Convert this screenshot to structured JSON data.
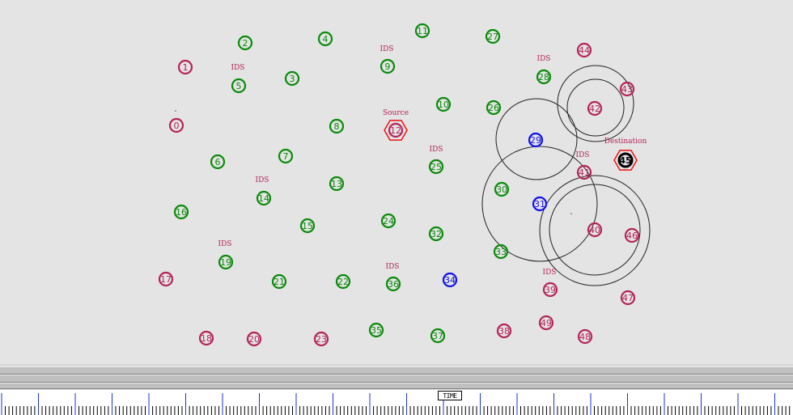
{
  "colors": {
    "green": "#0a8a0a",
    "magenta": "#b4245a",
    "blue": "#1010ee",
    "red": "#ee1111",
    "black": "#000000",
    "label": "#b4245a"
  },
  "nodes": [
    {
      "id": "0",
      "type": "magenta"
    },
    {
      "id": "1",
      "type": "magenta"
    },
    {
      "id": "2",
      "type": "green"
    },
    {
      "id": "3",
      "type": "green"
    },
    {
      "id": "4",
      "type": "green"
    },
    {
      "id": "5",
      "type": "green"
    },
    {
      "id": "6",
      "type": "green"
    },
    {
      "id": "7",
      "type": "green"
    },
    {
      "id": "8",
      "type": "green"
    },
    {
      "id": "9",
      "type": "green"
    },
    {
      "id": "10",
      "type": "green"
    },
    {
      "id": "11",
      "type": "green"
    },
    {
      "id": "12",
      "type": "source"
    },
    {
      "id": "13",
      "type": "green"
    },
    {
      "id": "14",
      "type": "green"
    },
    {
      "id": "15",
      "type": "green"
    },
    {
      "id": "16",
      "type": "green"
    },
    {
      "id": "17",
      "type": "magenta"
    },
    {
      "id": "18",
      "type": "magenta"
    },
    {
      "id": "19",
      "type": "green"
    },
    {
      "id": "20",
      "type": "magenta"
    },
    {
      "id": "21",
      "type": "green"
    },
    {
      "id": "22",
      "type": "green"
    },
    {
      "id": "23",
      "type": "magenta"
    },
    {
      "id": "24",
      "type": "green"
    },
    {
      "id": "25",
      "type": "green"
    },
    {
      "id": "26",
      "type": "green"
    },
    {
      "id": "27",
      "type": "green"
    },
    {
      "id": "28",
      "type": "green"
    },
    {
      "id": "29",
      "type": "blue"
    },
    {
      "id": "30",
      "type": "green"
    },
    {
      "id": "31",
      "type": "blue"
    },
    {
      "id": "32",
      "type": "green"
    },
    {
      "id": "33",
      "type": "green"
    },
    {
      "id": "34",
      "type": "blue"
    },
    {
      "id": "35",
      "type": "green"
    },
    {
      "id": "36",
      "type": "green"
    },
    {
      "id": "37",
      "type": "green"
    },
    {
      "id": "38",
      "type": "magenta"
    },
    {
      "id": "39",
      "type": "magenta"
    },
    {
      "id": "40",
      "type": "magenta"
    },
    {
      "id": "41",
      "type": "magenta"
    },
    {
      "id": "42",
      "type": "magenta"
    },
    {
      "id": "43",
      "type": "magenta"
    },
    {
      "id": "44",
      "type": "magenta"
    },
    {
      "id": "45",
      "type": "destination"
    },
    {
      "id": "46",
      "type": "magenta"
    },
    {
      "id": "47",
      "type": "magenta"
    },
    {
      "id": "48",
      "type": "magenta"
    },
    {
      "id": "49",
      "type": "magenta"
    }
  ],
  "labels": {
    "ids": "IDS",
    "source": "Source",
    "destination": "Destination"
  },
  "timeline": {
    "marker_label": "TIME"
  }
}
